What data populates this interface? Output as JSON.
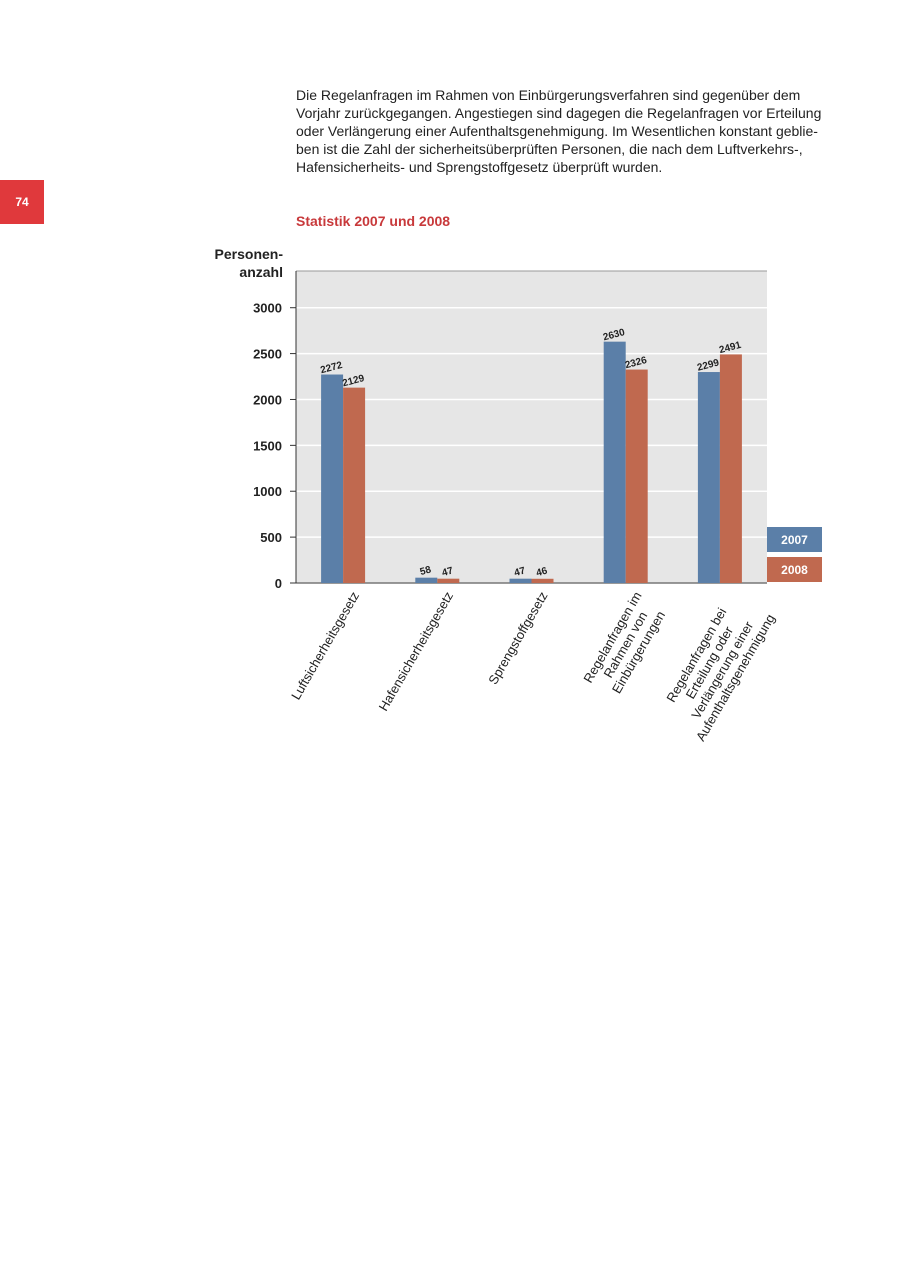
{
  "page_number": "74",
  "body": "Die Regelanfragen im Rahmen von Einbürgerungsverfahren sind gegenüber dem\nVorjahr zurückgegangen. Angestiegen sind dagegen die Regelanfragen vor Erteilung\noder Verlängerung einer Aufenthaltsgenehmigung. Im Wesentlichen konstant geblie-\nben ist die Zahl der sicherheitsüberprüften Personen, die nach dem Luftverkehrs-,\nHafensicherheits- und Sprengstoffgesetz überprüft wurden.",
  "chart_data": {
    "type": "bar",
    "title": "Statistik 2007 und 2008",
    "y_label": "Personen-\nanzahl",
    "categories": [
      "Luftsicherheitsgesetz",
      "Hafensicherheitsgesetz",
      "Sprengstoffgesetz",
      "Regelanfragen im\nRahmen von\nEinbürgerungen",
      "Regelanfragen bei\nErteilung oder\nVerlängerung einer\nAufenthaltsgenehmigung"
    ],
    "series": [
      {
        "name": "2007",
        "color": "#5b7fa8",
        "values": [
          2272,
          58,
          47,
          2630,
          2299
        ]
      },
      {
        "name": "2008",
        "color": "#c0694f",
        "values": [
          2129,
          47,
          46,
          2326,
          2491
        ]
      }
    ],
    "ylim": [
      0,
      3400
    ],
    "yticks": [
      0,
      500,
      1000,
      1500,
      2000,
      2500,
      3000
    ],
    "grid": true
  }
}
